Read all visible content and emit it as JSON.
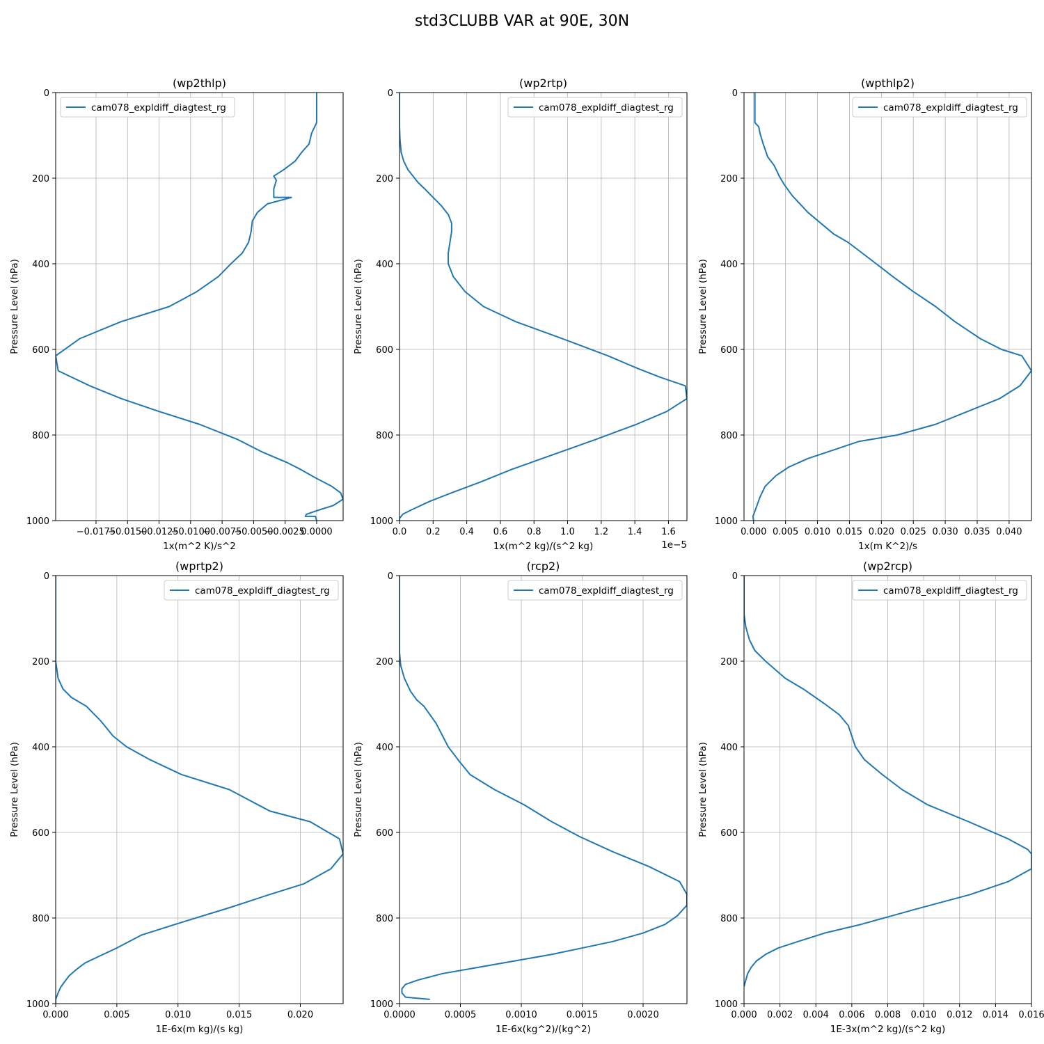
{
  "figure_title": "std3CLUBB VAR at 90E, 30N",
  "colors": {
    "series": "#1f77b4",
    "grid": "#b0b0b0",
    "axis": "#000000"
  },
  "chart_data": [
    {
      "type": "line",
      "title": "(wp2thlp)",
      "xlabel": "1x(m^2 K)/s^2",
      "ylabel": "Pressure Level (hPa)",
      "xlim": [
        -0.0207,
        0.0021
      ],
      "ylim": [
        1000,
        0
      ],
      "xticks": [
        -0.0175,
        -0.015,
        -0.0125,
        -0.01,
        -0.0075,
        -0.005,
        -0.0025,
        0.0
      ],
      "xtick_labels": [
        "−0.0175",
        "−0.0150",
        "−0.0125",
        "−0.0100",
        "−0.0075",
        "−0.0050",
        "−0.0025",
        "0.0000"
      ],
      "yticks": [
        0,
        200,
        400,
        600,
        800,
        1000
      ],
      "ytick_labels": [
        "0",
        "200",
        "400",
        "600",
        "800",
        "1000"
      ],
      "x_offset_label": "",
      "legend": {
        "entries": [
          "cam078_expldiff_diagtest_rg"
        ],
        "loc": "upper-left"
      },
      "series": [
        {
          "name": "cam078_expldiff_diagtest_rg",
          "x": [
            0.0,
            0.0,
            0.0,
            -0.0004,
            -0.0006,
            -0.0012,
            -0.0017,
            -0.0026,
            -0.0034,
            -0.0032,
            -0.0034,
            -0.0034,
            -0.002,
            -0.0039,
            -0.0047,
            -0.0051,
            -0.0052,
            -0.0054,
            -0.0059,
            -0.0068,
            -0.0078,
            -0.0095,
            -0.0117,
            -0.0155,
            -0.0188,
            -0.0207,
            -0.0205,
            -0.018,
            -0.0155,
            -0.0125,
            -0.0093,
            -0.0063,
            -0.0043,
            -0.0023,
            -0.0013,
            -0.0001,
            0.0012,
            0.0019,
            0.0021,
            0.0013,
            0.0002,
            -0.0008,
            -0.0009,
            -0.0001,
            0.0
          ],
          "y": [
            0,
            50,
            70,
            95,
            120,
            140,
            160,
            180,
            195,
            205,
            225,
            245,
            245,
            260,
            280,
            300,
            325,
            350,
            375,
            400,
            430,
            465,
            500,
            535,
            575,
            615,
            650,
            685,
            715,
            745,
            775,
            810,
            840,
            865,
            880,
            900,
            920,
            935,
            950,
            965,
            975,
            985,
            990,
            990,
            1000
          ]
        }
      ]
    },
    {
      "type": "line",
      "title": "(wp2rtp)",
      "xlabel": "1x(m^2 kg)/(s^2 kg)",
      "ylabel": "Pressure Level (hPa)",
      "xlim": [
        0.0,
        1.71
      ],
      "ylim": [
        1000,
        0
      ],
      "xticks": [
        0.0,
        0.2,
        0.4,
        0.6,
        0.8,
        1.0,
        1.2,
        1.4,
        1.6
      ],
      "xtick_labels": [
        "0.0",
        "0.2",
        "0.4",
        "0.6",
        "0.8",
        "1.0",
        "1.2",
        "1.4",
        "1.6"
      ],
      "yticks": [
        0,
        200,
        400,
        600,
        800,
        1000
      ],
      "ytick_labels": [
        "0",
        "200",
        "400",
        "600",
        "800",
        "1000"
      ],
      "x_offset_label": "1e−5",
      "legend": {
        "entries": [
          "cam078_expldiff_diagtest_rg"
        ],
        "loc": "upper-right"
      },
      "series": [
        {
          "name": "cam078_expldiff_diagtest_rg",
          "x": [
            0.0,
            0.0,
            0.0,
            0.003,
            0.01,
            0.025,
            0.05,
            0.08,
            0.11,
            0.15,
            0.2,
            0.25,
            0.29,
            0.31,
            0.31,
            0.3,
            0.29,
            0.29,
            0.32,
            0.39,
            0.5,
            0.69,
            0.97,
            1.24,
            1.42,
            1.55,
            1.7,
            1.71,
            1.59,
            1.41,
            1.17,
            0.92,
            0.67,
            0.48,
            0.31,
            0.18,
            0.07,
            0.02,
            0.0,
            0.0
          ],
          "y": [
            0,
            40,
            80,
            110,
            140,
            160,
            180,
            195,
            210,
            225,
            245,
            265,
            285,
            305,
            325,
            350,
            375,
            400,
            430,
            465,
            500,
            535,
            575,
            615,
            645,
            665,
            685,
            715,
            745,
            775,
            810,
            845,
            880,
            910,
            935,
            955,
            975,
            985,
            995,
            1000
          ]
        }
      ]
    },
    {
      "type": "line",
      "title": "(wpthlp2)",
      "xlabel": "1x(m K^2)/s",
      "ylabel": "Pressure Level (hPa)",
      "xlim": [
        -0.0015,
        0.0435
      ],
      "ylim": [
        1000,
        0
      ],
      "xticks": [
        0.0,
        0.005,
        0.01,
        0.015,
        0.02,
        0.025,
        0.03,
        0.035,
        0.04
      ],
      "xtick_labels": [
        "0.000",
        "0.005",
        "0.010",
        "0.015",
        "0.020",
        "0.025",
        "0.030",
        "0.035",
        "0.040"
      ],
      "yticks": [
        0,
        200,
        400,
        600,
        800,
        1000
      ],
      "ytick_labels": [
        "0",
        "200",
        "400",
        "600",
        "800",
        "1000"
      ],
      "x_offset_label": "",
      "legend": {
        "entries": [
          "cam078_expldiff_diagtest_rg"
        ],
        "loc": "upper-right"
      },
      "series": [
        {
          "name": "cam078_expldiff_diagtest_rg",
          "x": [
            0.0002,
            0.0002,
            0.0002,
            0.0008,
            0.001,
            0.0015,
            0.0022,
            0.0032,
            0.0037,
            0.004,
            0.0048,
            0.006,
            0.0085,
            0.0105,
            0.0125,
            0.0148,
            0.017,
            0.0192,
            0.0218,
            0.025,
            0.0285,
            0.0315,
            0.0355,
            0.0388,
            0.042,
            0.0435,
            0.0417,
            0.0385,
            0.0335,
            0.0285,
            0.0225,
            0.0165,
            0.0125,
            0.0085,
            0.0055,
            0.0035,
            0.0018,
            0.001,
            0.0004,
            -0.0001,
            0.0
          ],
          "y": [
            0,
            40,
            70,
            80,
            95,
            120,
            150,
            170,
            185,
            195,
            215,
            240,
            280,
            305,
            330,
            350,
            375,
            400,
            430,
            465,
            500,
            535,
            575,
            600,
            615,
            650,
            685,
            715,
            745,
            775,
            800,
            815,
            835,
            855,
            875,
            895,
            920,
            945,
            970,
            990,
            1000
          ]
        }
      ]
    },
    {
      "type": "line",
      "title": "(wprtp2)",
      "xlabel": "1E-6x(m kg)/(s kg)",
      "ylabel": "Pressure Level (hPa)",
      "xlim": [
        0.0,
        0.0235
      ],
      "ylim": [
        1000,
        0
      ],
      "xticks": [
        0.0,
        0.005,
        0.01,
        0.015,
        0.02
      ],
      "xtick_labels": [
        "0.000",
        "0.005",
        "0.010",
        "0.015",
        "0.020"
      ],
      "yticks": [
        0,
        200,
        400,
        600,
        800,
        1000
      ],
      "ytick_labels": [
        "0",
        "200",
        "400",
        "600",
        "800",
        "1000"
      ],
      "x_offset_label": "",
      "legend": {
        "entries": [
          "cam078_expldiff_diagtest_rg"
        ],
        "loc": "upper-right"
      },
      "series": [
        {
          "name": "cam078_expldiff_diagtest_rg",
          "x": [
            0.0,
            0.0,
            0.0002,
            0.0006,
            0.0013,
            0.0025,
            0.0037,
            0.0047,
            0.0058,
            0.0077,
            0.0103,
            0.0142,
            0.0175,
            0.0208,
            0.0232,
            0.0235,
            0.0225,
            0.0203,
            0.0175,
            0.0143,
            0.0103,
            0.007,
            0.005,
            0.0035,
            0.0024,
            0.0017,
            0.0011,
            0.0007,
            0.0004,
            0.0002,
            0.0,
            0.0
          ],
          "y": [
            0,
            200,
            240,
            265,
            285,
            305,
            340,
            375,
            400,
            430,
            465,
            500,
            550,
            575,
            615,
            650,
            685,
            720,
            745,
            775,
            810,
            840,
            870,
            890,
            905,
            920,
            935,
            950,
            962,
            975,
            990,
            1000
          ]
        }
      ]
    },
    {
      "type": "line",
      "title": "(rcp2)",
      "xlabel": "1E-6x(kg^2)/(kg^2)",
      "ylabel": "Pressure Level (hPa)",
      "xlim": [
        0.0,
        0.00236
      ],
      "ylim": [
        1000,
        0
      ],
      "xticks": [
        0.0,
        0.0005,
        0.001,
        0.0015,
        0.002
      ],
      "xtick_labels": [
        "0.0000",
        "0.0005",
        "0.0010",
        "0.0015",
        "0.0020"
      ],
      "yticks": [
        0,
        200,
        400,
        600,
        800,
        1000
      ],
      "ytick_labels": [
        "0",
        "200",
        "400",
        "600",
        "800",
        "1000"
      ],
      "x_offset_label": "",
      "legend": {
        "entries": [
          "cam078_expldiff_diagtest_rg"
        ],
        "loc": "upper-right"
      },
      "series": [
        {
          "name": "cam078_expldiff_diagtest_rg",
          "x": [
            0.0,
            0.0,
            0.0,
            1e-05,
            4e-05,
            9e-05,
            0.00014,
            0.0002,
            0.0003,
            0.0004,
            0.00048,
            0.00058,
            0.00078,
            0.00102,
            0.00125,
            0.00148,
            0.00175,
            0.00205,
            0.0023,
            0.00236,
            0.00236,
            0.00228,
            0.00218,
            0.002,
            0.00175,
            0.0015,
            0.00125,
            0.00095,
            0.00065,
            0.00035,
            0.00015,
            5e-05,
            2e-05,
            2e-05,
            5e-05,
            0.00025
          ],
          "y": [
            0,
            100,
            180,
            210,
            240,
            270,
            290,
            305,
            345,
            400,
            430,
            465,
            500,
            535,
            575,
            610,
            645,
            680,
            715,
            745,
            770,
            795,
            815,
            835,
            855,
            870,
            885,
            900,
            915,
            930,
            945,
            955,
            965,
            975,
            985,
            990
          ]
        }
      ]
    },
    {
      "type": "line",
      "title": "(wp2rcp)",
      "xlabel": "1E-3x(m^2 kg)/(s^2 kg)",
      "ylabel": "Pressure Level (hPa)",
      "xlim": [
        0.0,
        0.016
      ],
      "ylim": [
        1000,
        0
      ],
      "xticks": [
        0.0,
        0.002,
        0.004,
        0.006,
        0.008,
        0.01,
        0.012,
        0.014,
        0.016
      ],
      "xtick_labels": [
        "0.000",
        "0.002",
        "0.004",
        "0.006",
        "0.008",
        "0.010",
        "0.012",
        "0.014",
        "0.016"
      ],
      "yticks": [
        0,
        200,
        400,
        600,
        800,
        1000
      ],
      "ytick_labels": [
        "0",
        "200",
        "400",
        "600",
        "800",
        "1000"
      ],
      "x_offset_label": "",
      "legend": {
        "entries": [
          "cam078_expldiff_diagtest_rg"
        ],
        "loc": "upper-right"
      },
      "series": [
        {
          "name": "cam078_expldiff_diagtest_rg",
          "x": [
            0.0,
            0.0,
            0.0001,
            0.0003,
            0.0006,
            0.0012,
            0.0023,
            0.0033,
            0.0045,
            0.0053,
            0.0058,
            0.006,
            0.0062,
            0.0067,
            0.0077,
            0.0088,
            0.0102,
            0.0125,
            0.0147,
            0.0158,
            0.016,
            0.016,
            0.0147,
            0.0126,
            0.0095,
            0.0065,
            0.0045,
            0.003,
            0.0019,
            0.0012,
            0.0007,
            0.0004,
            0.0002,
            0.0001,
            0.0
          ],
          "y": [
            0,
            90,
            120,
            150,
            175,
            200,
            240,
            265,
            300,
            325,
            350,
            375,
            400,
            430,
            465,
            500,
            535,
            575,
            615,
            640,
            650,
            685,
            715,
            745,
            780,
            815,
            835,
            855,
            870,
            885,
            900,
            915,
            930,
            945,
            960
          ]
        }
      ]
    }
  ]
}
